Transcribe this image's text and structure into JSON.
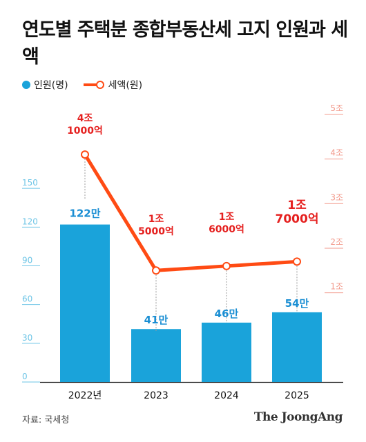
{
  "title": "연도별 주택분 종합부동산세 고지 인원과 세액",
  "legend": {
    "people_label": "인원(명)",
    "tax_label": "세액(원)"
  },
  "colors": {
    "bar": "#1AA3DA",
    "bar_label": "#1A8ED3",
    "line": "#FF4B14",
    "line_label": "#E5201F",
    "right_axis": "#F29A8C",
    "left_axis": "#6EC5E6"
  },
  "chart_data": {
    "type": "bar+line",
    "categories": [
      "2022년",
      "2023",
      "2024",
      "2025"
    ],
    "series": [
      {
        "name": "인원(명)",
        "type": "bar",
        "axis": "left",
        "values": [
          122,
          41,
          46,
          54
        ],
        "data_labels": [
          "122만",
          "41만",
          "46만",
          "54만"
        ]
      },
      {
        "name": "세액(원)",
        "type": "line",
        "axis": "right",
        "values": [
          4.1,
          1.5,
          1.6,
          1.7
        ],
        "data_labels": [
          [
            "4조",
            "1000억"
          ],
          [
            "1조",
            "5000억"
          ],
          [
            "1조",
            "6000억"
          ],
          [
            "1조",
            "7000억"
          ]
        ]
      }
    ],
    "left_axis": {
      "ticks": [
        "0",
        "30",
        "60",
        "90",
        "120",
        "150"
      ],
      "range": [
        0,
        180
      ]
    },
    "right_axis": {
      "ticks": [
        "1조",
        "2조",
        "3조",
        "4조",
        "5조"
      ],
      "range": [
        -1,
        5.4
      ]
    }
  },
  "source": "자료: 국세청",
  "brand": "The JoongAng"
}
